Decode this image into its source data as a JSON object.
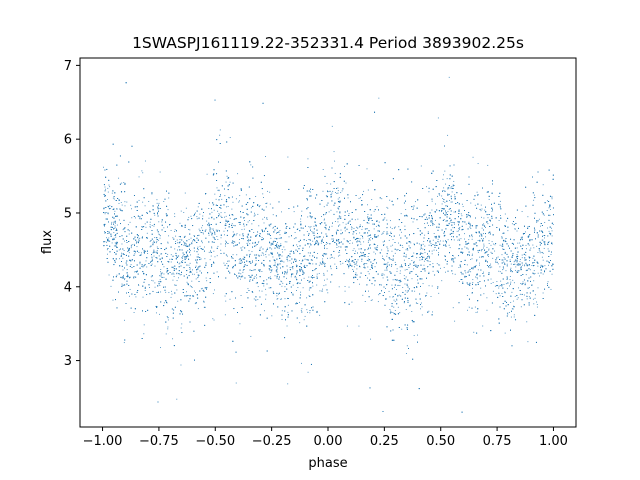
{
  "chart_data": {
    "type": "scatter",
    "title": "1SWASPJ161119.22-352331.4 Period 3893902.25s",
    "xlabel": "phase",
    "ylabel": "flux",
    "xlim": [
      -1.1,
      1.1
    ],
    "ylim": [
      2.1,
      7.1
    ],
    "xticks": [
      -1.0,
      -0.75,
      -0.5,
      -0.25,
      0.0,
      0.25,
      0.5,
      0.75,
      1.0
    ],
    "xtick_labels": [
      "−1.00",
      "−0.75",
      "−0.50",
      "−0.25",
      "0.00",
      "0.25",
      "0.50",
      "0.75",
      "1.00"
    ],
    "yticks": [
      3,
      4,
      5,
      6,
      7
    ],
    "ytick_labels": [
      "3",
      "4",
      "5",
      "6",
      "7"
    ],
    "grid": false,
    "point_color": "#1f77b4",
    "phase_range": [
      -1.0,
      1.0
    ],
    "flux_profile": {
      "phase": [
        0.0,
        0.05,
        0.1,
        0.15,
        0.2,
        0.25,
        0.3,
        0.35,
        0.4,
        0.45,
        0.5
      ],
      "median_flux": [
        5.0,
        4.8,
        4.45,
        4.5,
        4.55,
        4.5,
        4.25,
        4.3,
        4.4,
        4.5,
        4.7
      ]
    },
    "flux_spread": 0.42,
    "num_points": 9000
  }
}
